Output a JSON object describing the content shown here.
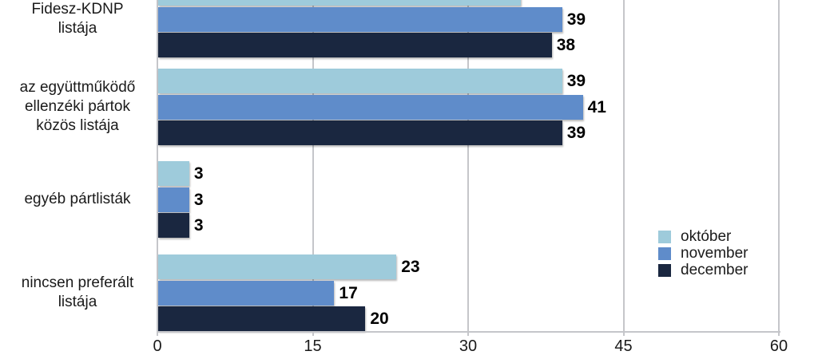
{
  "chart": {
    "background_color": "#ffffff",
    "grid_color": "#c5c6ca",
    "text_color": "#1a1a1a",
    "value_label_color": "#000000"
  },
  "chart_data": {
    "type": "bar",
    "orientation": "horizontal",
    "title": "",
    "xlabel": "",
    "ylabel": "",
    "xlim": [
      0,
      60
    ],
    "xticks": [
      "0",
      "15",
      "30",
      "45",
      "60"
    ],
    "xtick_values": [
      0,
      15,
      30,
      45,
      60
    ],
    "grid": true,
    "legend_position": "right",
    "value_labels_shown": true,
    "categories": [
      "Fidesz-KDNP listája",
      "az együttműködő ellenzéki pártok közös listája",
      "egyéb pártlisták",
      "nincsen preferált listája"
    ],
    "category_lines": [
      [
        "Fidesz-KDNP",
        "listája"
      ],
      [
        "az együttműködő",
        "ellenzéki pártok",
        "közös listája"
      ],
      [
        "egyéb pártlisták"
      ],
      [
        "nincsen preferált",
        "listája"
      ]
    ],
    "series": [
      {
        "name": "október",
        "color": "#9ecbdb",
        "values": [
          35,
          39,
          3,
          23
        ]
      },
      {
        "name": "november",
        "color": "#5f8cca",
        "values": [
          39,
          41,
          3,
          17
        ]
      },
      {
        "name": "december",
        "color": "#1a2740",
        "values": [
          38,
          39,
          3,
          20
        ]
      }
    ]
  }
}
